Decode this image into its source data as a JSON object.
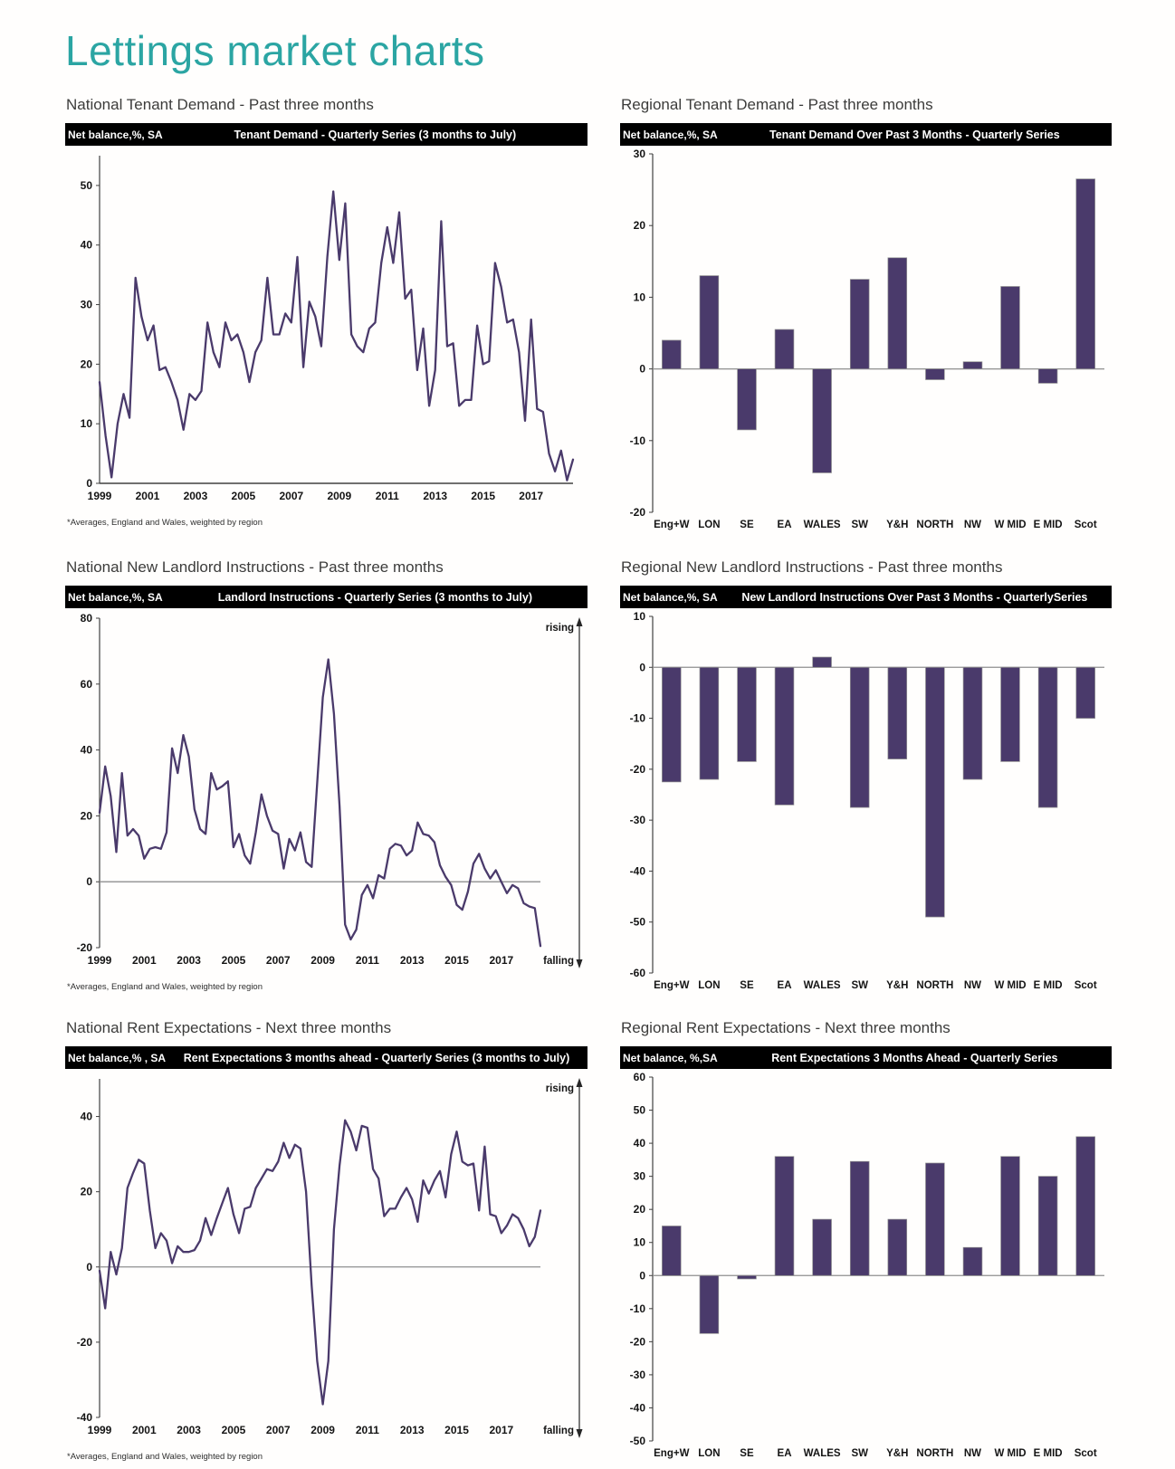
{
  "page_title": "Lettings market charts",
  "colors": {
    "accent_teal": "#2BA5A3",
    "series_purple": "#4A3A6B",
    "header_bg": "#000000",
    "header_text": "#FFFFFF",
    "zero_line": "#8F8F8F",
    "axis": "#404040"
  },
  "chart_data": [
    {
      "id": "national-tenant-demand",
      "type": "line",
      "section_title": "National Tenant Demand - Past three months",
      "header_left": "Net balance,%, SA",
      "title": "Tenant Demand - Quarterly Series (3 months to July)",
      "footnote": "*Averages,  England and Wales, weighted by region",
      "x_start_year": 1999,
      "points_per_year": 4,
      "x_tick_years": [
        1999,
        2001,
        2003,
        2005,
        2007,
        2009,
        2011,
        2013,
        2015,
        2017
      ],
      "ylim": [
        0,
        55
      ],
      "yticks": [
        0,
        10,
        20,
        30,
        40,
        50
      ],
      "grid": false,
      "annotations": null,
      "values": [
        17,
        8,
        1,
        10,
        15,
        11,
        34.5,
        28,
        24,
        26.5,
        19,
        19.5,
        17,
        14,
        9,
        15,
        14,
        15.5,
        27,
        22,
        19.5,
        27,
        24,
        25,
        22,
        17,
        22,
        24,
        34.5,
        25,
        25,
        28.5,
        27,
        38,
        19.5,
        30.5,
        28,
        23,
        38,
        49,
        37.5,
        47,
        25,
        23,
        22,
        26,
        27,
        37,
        43,
        37,
        45.5,
        31,
        32.5,
        19,
        26,
        13,
        19,
        44,
        23,
        23.5,
        13,
        14,
        14,
        26.5,
        20,
        20.5,
        37,
        33,
        27,
        27.5,
        22,
        10.5,
        27.5,
        12.5,
        12,
        5,
        2,
        5.5,
        0.5,
        4
      ]
    },
    {
      "id": "regional-tenant-demand",
      "type": "bar",
      "section_title": "Regional Tenant Demand - Past three months",
      "header_left": "Net balance,%, SA",
      "title": "Tenant Demand Over Past 3 Months - Quarterly Series",
      "categories": [
        "Eng+W",
        "LON",
        "SE",
        "EA",
        "WALES",
        "SW",
        "Y&H",
        "NORTH",
        "NW",
        "W MID",
        "E MID",
        "Scot"
      ],
      "values": [
        4,
        13,
        -8.5,
        5.5,
        -14.5,
        12.5,
        15.5,
        -1.5,
        1,
        11.5,
        -2,
        26.5
      ],
      "ylim": [
        -20,
        30
      ],
      "yticks": [
        30,
        20,
        10,
        0,
        -10,
        -20
      ],
      "grid": false,
      "annotations": null
    },
    {
      "id": "national-new-landlord-instructions",
      "type": "line",
      "section_title": "National New Landlord Instructions - Past three months",
      "header_left": "Net balance,%, SA",
      "title": "Landlord Instructions - Quarterly Series (3 months to July)",
      "footnote": "*Averages,  England and Wales, weighted by region",
      "x_start_year": 1999,
      "points_per_year": 4,
      "x_tick_years": [
        1999,
        2001,
        2003,
        2005,
        2007,
        2009,
        2011,
        2013,
        2015,
        2017
      ],
      "ylim": [
        -20,
        80
      ],
      "yticks": [
        -20,
        0,
        20,
        40,
        60,
        80
      ],
      "grid": false,
      "annotations": {
        "top": "rising",
        "bottom": "falling"
      },
      "values": [
        21,
        35,
        26,
        9,
        33,
        14,
        16,
        14,
        7,
        10,
        10.5,
        10,
        15,
        40.5,
        33,
        44.5,
        38,
        22,
        16,
        14.5,
        33,
        28,
        29,
        30.5,
        10.5,
        14.5,
        8,
        5.5,
        15,
        26.5,
        20,
        15.5,
        14.5,
        4,
        13,
        9.5,
        15,
        6,
        4.5,
        30,
        56,
        67.5,
        51,
        23,
        -13,
        -17.5,
        -14.5,
        -4,
        -1,
        -5,
        2,
        1,
        10,
        11.5,
        11,
        8,
        9.5,
        18,
        14.5,
        14,
        12,
        5,
        1.5,
        -1,
        -7,
        -8.5,
        -3,
        5.5,
        8.5,
        4,
        1,
        3.5,
        0,
        -3.5,
        -1,
        -2,
        -6.5,
        -7.5,
        -8,
        -19.5
      ]
    },
    {
      "id": "regional-new-landlord-instructions",
      "type": "bar",
      "section_title": "Regional New Landlord Instructions - Past three months",
      "header_left": "Net balance,%, SA",
      "title": "New Landlord Instructions Over Past 3 Months - QuarterlySeries",
      "categories": [
        "Eng+W",
        "LON",
        "SE",
        "EA",
        "WALES",
        "SW",
        "Y&H",
        "NORTH",
        "NW",
        "W MID",
        "E MID",
        "Scot"
      ],
      "values": [
        -22.5,
        -22,
        -18.5,
        -27,
        2,
        -27.5,
        -18,
        -49,
        -22,
        -18.5,
        -27.5,
        -10
      ],
      "ylim": [
        -60,
        10
      ],
      "yticks": [
        10,
        0,
        -10,
        -20,
        -30,
        -40,
        -50,
        -60
      ],
      "grid": false,
      "annotations": null
    },
    {
      "id": "national-rent-expectations",
      "type": "line",
      "section_title": "National Rent Expectations - Next three months",
      "header_left": "Net balance,% , SA",
      "title": "Rent Expectations 3 months ahead - Quarterly Series (3 months to July)",
      "footnote": "*Averages,  England and Wales, weighted by region",
      "x_start_year": 1999,
      "points_per_year": 4,
      "x_tick_years": [
        1999,
        2001,
        2003,
        2005,
        2007,
        2009,
        2011,
        2013,
        2015,
        2017
      ],
      "ylim": [
        -40,
        50
      ],
      "yticks": [
        -40,
        -20,
        0,
        20,
        40
      ],
      "grid": false,
      "annotations": {
        "top": "rising",
        "bottom": "falling"
      },
      "values": [
        -1,
        -11,
        4,
        -2,
        5,
        21,
        25,
        28.5,
        27.5,
        15,
        5,
        9,
        7,
        1,
        5.5,
        4,
        4,
        4.5,
        7,
        13,
        8.5,
        13,
        17,
        21,
        14,
        9,
        15.5,
        16,
        21,
        23.5,
        26,
        25.5,
        28,
        33,
        29,
        32.5,
        31.5,
        20,
        -5,
        -25,
        -36.5,
        -25,
        10,
        27,
        39,
        36,
        31,
        37.5,
        37,
        26,
        23.5,
        13.5,
        15.5,
        15.5,
        18.5,
        21,
        18,
        12,
        23,
        19.5,
        23,
        25.5,
        18.5,
        30,
        36,
        28,
        27,
        27.5,
        15,
        32,
        14,
        13.5,
        9,
        11,
        14,
        13,
        10,
        5.5,
        8,
        15
      ]
    },
    {
      "id": "regional-rent-expectations",
      "type": "bar",
      "section_title": "Regional Rent Expectations - Next three months",
      "header_left": "Net balance, %,SA",
      "title": "Rent Expectations 3 Months Ahead - Quarterly Series",
      "categories": [
        "Eng+W",
        "LON",
        "SE",
        "EA",
        "WALES",
        "SW",
        "Y&H",
        "NORTH",
        "NW",
        "W MID",
        "E MID",
        "Scot"
      ],
      "values": [
        15,
        -17.5,
        -1,
        36,
        17,
        34.5,
        17,
        34,
        8.5,
        36,
        30,
        42
      ],
      "ylim": [
        -50,
        60
      ],
      "yticks": [
        60,
        50,
        40,
        30,
        20,
        10,
        0,
        -10,
        -20,
        -30,
        -40,
        -50
      ],
      "grid": false,
      "annotations": null
    }
  ]
}
